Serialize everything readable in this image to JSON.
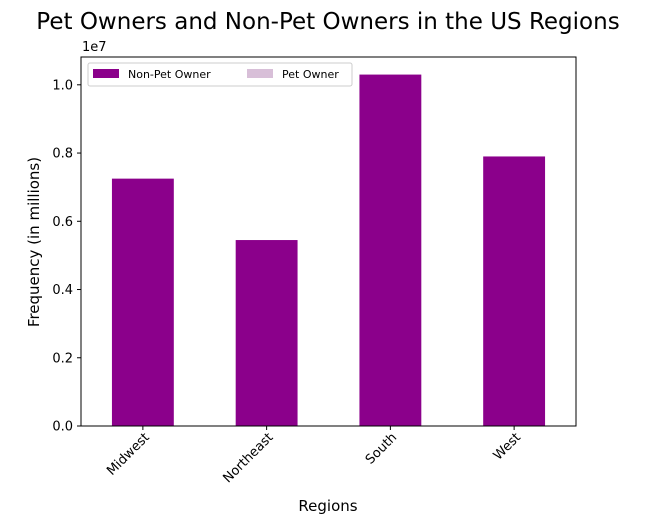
{
  "chart_data": {
    "type": "bar",
    "title": "Pet Owners and Non-Pet Owners in the US Regions",
    "xlabel": "Regions",
    "ylabel": "Frequency (in millions)",
    "offset_text": "1e7",
    "categories": [
      "Midwest",
      "Northeast",
      "South",
      "West"
    ],
    "series": [
      {
        "name": "Non-Pet Owner",
        "color": "#8b008b",
        "values": [
          7250000,
          5450000,
          10300000,
          7900000
        ]
      },
      {
        "name": "Pet Owner",
        "color": "#d8bfd8",
        "values": [
          0,
          0,
          0,
          0
        ]
      }
    ],
    "ylim": [
      0,
      10815000
    ],
    "yticks": [
      0,
      2000000,
      4000000,
      6000000,
      8000000,
      10000000
    ],
    "ytick_labels": [
      "0.0",
      "0.2",
      "0.4",
      "0.6",
      "0.8",
      "1.0"
    ],
    "legend": {
      "placement": "upper-left",
      "columns": 2
    },
    "grid": false
  }
}
